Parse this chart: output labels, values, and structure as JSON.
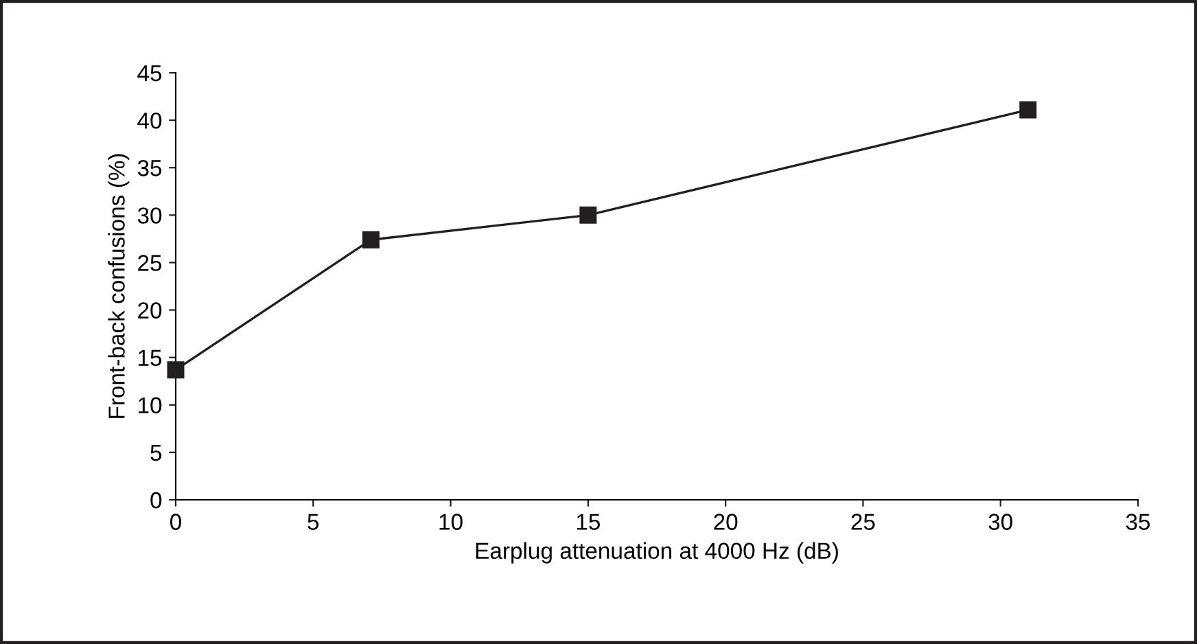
{
  "chart_data": {
    "type": "line",
    "xlabel": "Earplug attenuation at 4000 Hz (dB)",
    "ylabel": "Front-back confusions (%)",
    "x": [
      0,
      7.1,
      15,
      31
    ],
    "series": [
      {
        "color": "#231f20",
        "values": [
          13.7,
          27.4,
          30,
          41.1
        ]
      }
    ],
    "xlim": [
      0,
      35
    ],
    "xticks": [
      0,
      5,
      10,
      15,
      20,
      25,
      30,
      35
    ],
    "ylim": [
      0,
      45
    ],
    "yticks": [
      0,
      5,
      10,
      15,
      20,
      25,
      30,
      35,
      40,
      45
    ],
    "marker": "square",
    "line_style": "solid",
    "grid": false,
    "legend": false
  }
}
